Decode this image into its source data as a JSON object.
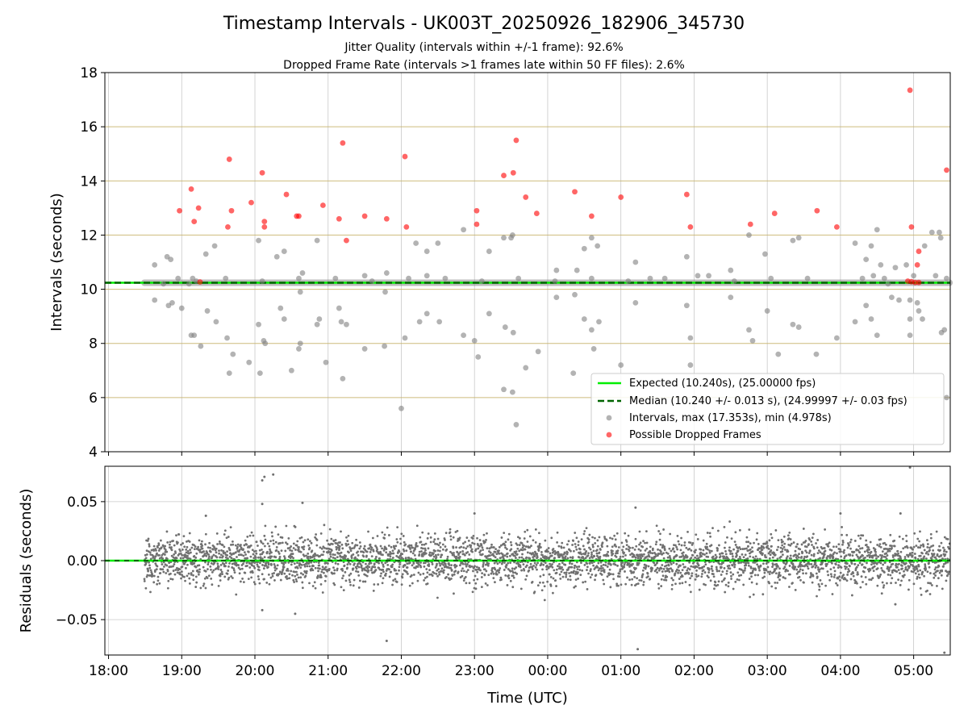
{
  "chart_data": [
    {
      "type": "scatter",
      "title": "Timestamp Intervals - UK003T_20250926_182906_345730",
      "subtitle_1": "Jitter Quality (intervals within +/-1 frame): 92.6%",
      "subtitle_2": "Dropped Frame Rate (intervals >1 frames late within 50 FF files): 2.6%",
      "xlabel": "",
      "ylabel": "Intervals (seconds)",
      "xlim": [
        -0.05,
        11.5
      ],
      "ylim": [
        4,
        18
      ],
      "yticks": [
        4,
        6,
        8,
        10,
        12,
        14,
        16,
        18
      ],
      "x_unit": "hours after 18:00 UTC",
      "expected_interval": 10.24,
      "median_interval": 10.24,
      "run_start": 0.49,
      "run_end": 11.49,
      "legend_position": "lower right",
      "legend": [
        "Expected (10.240s), (25.00000 fps)",
        "Median (10.240 +/- 0.013 s), (24.99997 +/- 0.03 fps)",
        "Intervals, max (17.353s), min (4.978s)",
        "Possible Dropped Frames"
      ],
      "series": [
        {
          "name": "Intervals",
          "points": [
            [
              0.63,
              10.9
            ],
            [
              0.63,
              9.6
            ],
            [
              0.8,
              11.2
            ],
            [
              0.85,
              11.1
            ],
            [
              0.82,
              9.4
            ],
            [
              0.87,
              9.5
            ],
            [
              1.0,
              9.3
            ],
            [
              1.13,
              8.3
            ],
            [
              1.17,
              8.3
            ],
            [
              1.26,
              7.9
            ],
            [
              1.1,
              10.2
            ],
            [
              1.2,
              10.3
            ],
            [
              1.33,
              11.3
            ],
            [
              1.35,
              9.2
            ],
            [
              1.45,
              11.6
            ],
            [
              1.47,
              8.8
            ],
            [
              1.62,
              8.2
            ],
            [
              1.65,
              6.9
            ],
            [
              1.7,
              7.6
            ],
            [
              1.92,
              7.3
            ],
            [
              2.05,
              11.8
            ],
            [
              2.05,
              8.7
            ],
            [
              2.07,
              6.9
            ],
            [
              2.12,
              8.1
            ],
            [
              2.14,
              8.0
            ],
            [
              2.3,
              11.2
            ],
            [
              2.35,
              9.3
            ],
            [
              2.4,
              8.9
            ],
            [
              2.4,
              11.4
            ],
            [
              2.5,
              7.0
            ],
            [
              2.6,
              7.8
            ],
            [
              2.62,
              8.0
            ],
            [
              2.65,
              10.6
            ],
            [
              2.62,
              9.9
            ],
            [
              2.85,
              11.8
            ],
            [
              2.85,
              8.7
            ],
            [
              2.88,
              8.9
            ],
            [
              2.97,
              7.3
            ],
            [
              3.15,
              9.3
            ],
            [
              3.18,
              8.8
            ],
            [
              3.2,
              6.7
            ],
            [
              3.25,
              8.7
            ],
            [
              3.5,
              10.5
            ],
            [
              3.5,
              7.8
            ],
            [
              3.77,
              7.9
            ],
            [
              3.78,
              9.9
            ],
            [
              3.8,
              10.6
            ],
            [
              4.0,
              5.6
            ],
            [
              4.05,
              8.2
            ],
            [
              4.2,
              11.7
            ],
            [
              4.25,
              8.8
            ],
            [
              4.35,
              10.5
            ],
            [
              4.35,
              11.4
            ],
            [
              4.35,
              9.1
            ],
            [
              4.5,
              11.7
            ],
            [
              4.52,
              8.8
            ],
            [
              4.85,
              12.2
            ],
            [
              4.85,
              8.3
            ],
            [
              5.0,
              8.1
            ],
            [
              5.05,
              7.5
            ],
            [
              5.2,
              11.4
            ],
            [
              5.2,
              9.1
            ],
            [
              5.4,
              11.9
            ],
            [
              5.42,
              8.6
            ],
            [
              5.5,
              11.9
            ],
            [
              5.52,
              12.0
            ],
            [
              5.53,
              8.4
            ],
            [
              5.52,
              6.2
            ],
            [
              5.4,
              6.3
            ],
            [
              5.57,
              5.0
            ],
            [
              5.7,
              7.1
            ],
            [
              5.87,
              7.7
            ],
            [
              6.12,
              10.7
            ],
            [
              6.12,
              9.7
            ],
            [
              6.35,
              6.9
            ],
            [
              6.37,
              9.8
            ],
            [
              6.4,
              10.7
            ],
            [
              6.5,
              11.5
            ],
            [
              6.5,
              8.9
            ],
            [
              6.6,
              11.9
            ],
            [
              6.6,
              8.5
            ],
            [
              6.63,
              7.8
            ],
            [
              6.68,
              11.6
            ],
            [
              6.7,
              8.8
            ],
            [
              7.0,
              7.2
            ],
            [
              7.2,
              11.0
            ],
            [
              7.2,
              9.5
            ],
            [
              7.4,
              10.4
            ],
            [
              7.9,
              11.2
            ],
            [
              7.9,
              9.4
            ],
            [
              7.95,
              8.2
            ],
            [
              7.95,
              7.2
            ],
            [
              8.2,
              10.5
            ],
            [
              8.5,
              10.7
            ],
            [
              8.5,
              9.7
            ],
            [
              8.75,
              12.0
            ],
            [
              8.75,
              8.5
            ],
            [
              8.8,
              8.1
            ],
            [
              8.97,
              11.3
            ],
            [
              9.0,
              9.2
            ],
            [
              9.15,
              7.6
            ],
            [
              9.35,
              11.8
            ],
            [
              9.35,
              8.7
            ],
            [
              9.43,
              11.9
            ],
            [
              9.43,
              8.6
            ],
            [
              9.67,
              7.6
            ],
            [
              9.95,
              8.2
            ],
            [
              10.2,
              11.7
            ],
            [
              10.2,
              8.8
            ],
            [
              10.35,
              11.1
            ],
            [
              10.35,
              9.4
            ],
            [
              10.42,
              11.6
            ],
            [
              10.42,
              8.9
            ],
            [
              10.5,
              12.2
            ],
            [
              10.5,
              8.3
            ],
            [
              10.55,
              10.9
            ],
            [
              10.6,
              10.4
            ],
            [
              10.7,
              9.7
            ],
            [
              10.75,
              10.8
            ],
            [
              10.8,
              9.6
            ],
            [
              10.9,
              10.9
            ],
            [
              10.95,
              9.6
            ],
            [
              11.0,
              10.5
            ],
            [
              10.95,
              8.9
            ],
            [
              10.95,
              8.3
            ],
            [
              11.05,
              9.5
            ],
            [
              11.07,
              9.2
            ],
            [
              11.15,
              11.6
            ],
            [
              11.12,
              8.9
            ],
            [
              11.25,
              12.1
            ],
            [
              11.35,
              12.1
            ],
            [
              11.37,
              11.9
            ],
            [
              11.38,
              8.4
            ],
            [
              11.42,
              8.5
            ],
            [
              11.45,
              6.0
            ],
            [
              11.3,
              10.5
            ],
            [
              11.45,
              10.4
            ],
            [
              10.65,
              10.2
            ],
            [
              10.45,
              10.5
            ],
            [
              10.3,
              10.4
            ],
            [
              9.55,
              10.4
            ],
            [
              9.05,
              10.4
            ],
            [
              8.55,
              10.3
            ],
            [
              8.05,
              10.5
            ],
            [
              7.6,
              10.4
            ],
            [
              7.1,
              10.3
            ],
            [
              6.6,
              10.4
            ],
            [
              6.1,
              10.3
            ],
            [
              5.6,
              10.4
            ],
            [
              5.1,
              10.3
            ],
            [
              4.6,
              10.4
            ],
            [
              4.1,
              10.4
            ],
            [
              3.6,
              10.3
            ],
            [
              3.1,
              10.4
            ],
            [
              2.6,
              10.4
            ],
            [
              2.1,
              10.3
            ],
            [
              1.6,
              10.4
            ],
            [
              1.15,
              10.4
            ],
            [
              0.75,
              10.2
            ],
            [
              0.95,
              10.4
            ]
          ]
        },
        {
          "name": "Possible Dropped Frames",
          "points": [
            [
              0.97,
              12.9
            ],
            [
              1.13,
              13.7
            ],
            [
              1.17,
              12.5
            ],
            [
              1.23,
              13.0
            ],
            [
              1.25,
              10.27
            ],
            [
              1.63,
              12.3
            ],
            [
              1.65,
              14.8
            ],
            [
              1.68,
              12.9
            ],
            [
              1.95,
              13.2
            ],
            [
              2.1,
              14.3
            ],
            [
              2.13,
              12.5
            ],
            [
              2.13,
              12.3
            ],
            [
              2.43,
              13.5
            ],
            [
              2.57,
              12.7
            ],
            [
              2.6,
              12.7
            ],
            [
              2.93,
              13.1
            ],
            [
              3.15,
              12.6
            ],
            [
              3.2,
              15.4
            ],
            [
              3.25,
              11.8
            ],
            [
              3.5,
              12.7
            ],
            [
              3.8,
              12.6
            ],
            [
              4.05,
              14.9
            ],
            [
              4.07,
              12.3
            ],
            [
              5.03,
              12.9
            ],
            [
              5.03,
              12.4
            ],
            [
              5.4,
              14.2
            ],
            [
              5.53,
              14.3
            ],
            [
              5.57,
              15.5
            ],
            [
              5.7,
              13.4
            ],
            [
              5.85,
              12.8
            ],
            [
              6.37,
              13.6
            ],
            [
              6.6,
              12.7
            ],
            [
              7.0,
              13.4
            ],
            [
              7.9,
              13.5
            ],
            [
              7.95,
              12.3
            ],
            [
              8.77,
              12.4
            ],
            [
              9.1,
              12.8
            ],
            [
              9.68,
              12.9
            ],
            [
              9.95,
              12.3
            ],
            [
              10.95,
              17.35
            ],
            [
              10.97,
              12.3
            ],
            [
              11.05,
              10.9
            ],
            [
              11.07,
              11.4
            ],
            [
              11.45,
              14.4
            ],
            [
              10.92,
              10.3
            ],
            [
              10.97,
              10.28
            ],
            [
              11.02,
              10.25
            ],
            [
              11.07,
              10.25
            ]
          ]
        }
      ]
    },
    {
      "type": "scatter",
      "xlabel": "Time (UTC)",
      "ylabel": "Residuals (seconds)",
      "xlim": [
        -0.05,
        11.5
      ],
      "ylim": [
        -0.08,
        0.08
      ],
      "yticks": [
        -0.05,
        0.0,
        0.05
      ],
      "ytick_labels": [
        "−0.05",
        "0.00",
        "0.05"
      ],
      "xticks": [
        0,
        1,
        2,
        3,
        4,
        5,
        6,
        7,
        8,
        9,
        10,
        11
      ],
      "xtick_labels": [
        "18:00",
        "19:00",
        "20:00",
        "21:00",
        "22:00",
        "23:00",
        "00:00",
        "01:00",
        "02:00",
        "03:00",
        "04:00",
        "05:00"
      ],
      "baseline": 0.0,
      "residual_sigma": 0.013,
      "sample_count": 3800,
      "outliers": [
        [
          2.1,
          0.068
        ],
        [
          2.13,
          0.071
        ],
        [
          2.25,
          0.073
        ],
        [
          2.1,
          0.048
        ],
        [
          2.65,
          0.049
        ],
        [
          1.33,
          0.038
        ],
        [
          3.8,
          -0.068
        ],
        [
          7.23,
          -0.075
        ],
        [
          7.2,
          0.045
        ],
        [
          10.95,
          0.079
        ],
        [
          11.42,
          -0.078
        ],
        [
          10.0,
          0.04
        ],
        [
          10.82,
          0.04
        ],
        [
          2.55,
          -0.045
        ],
        [
          2.1,
          -0.042
        ],
        [
          10.75,
          -0.037
        ],
        [
          5.0,
          0.04
        ]
      ]
    }
  ]
}
